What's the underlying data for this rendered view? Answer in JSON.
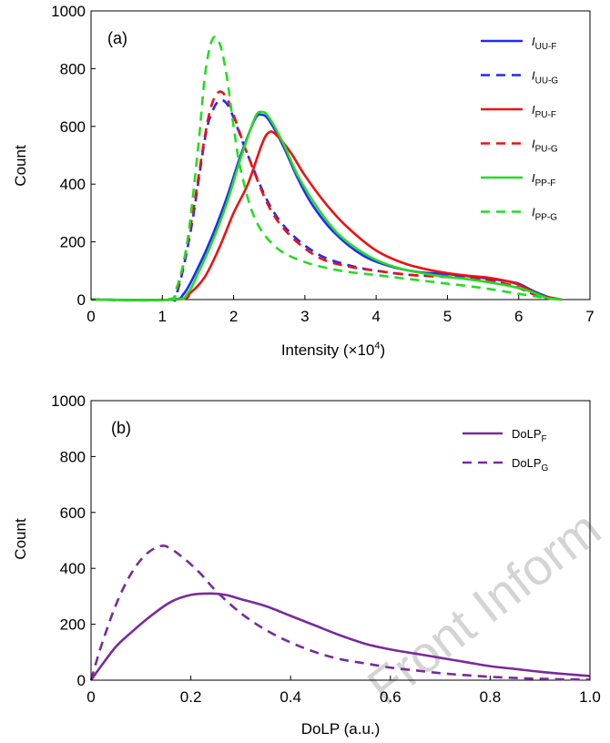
{
  "watermark": "Front Inform",
  "chart_data": [
    {
      "type": "line",
      "panel_label": "(a)",
      "xlabel": "Intensity (×10",
      "xlabel_sup": "4",
      "xlabel_suffix": ")",
      "ylabel": "Count",
      "xlim": [
        0,
        7
      ],
      "ylim": [
        0,
        1000
      ],
      "xticks": [
        0,
        1,
        2,
        3,
        4,
        5,
        6,
        7
      ],
      "yticks": [
        0,
        200,
        400,
        600,
        800,
        1000
      ],
      "grid": false,
      "legend_position": "top-right",
      "series": [
        {
          "legend_main": "I",
          "legend_sub": "UU-F",
          "color": "#1f2bff",
          "dash": "solid",
          "x": [
            0,
            1.1,
            1.3,
            1.5,
            1.7,
            1.9,
            2.1,
            2.3,
            2.4,
            2.5,
            2.7,
            2.9,
            3.1,
            3.4,
            3.8,
            4.2,
            4.6,
            5.0,
            5.4,
            5.8,
            6.0,
            6.2,
            6.4,
            6.6
          ],
          "y": [
            0,
            0,
            20,
            110,
            220,
            350,
            500,
            625,
            640,
            620,
            530,
            420,
            330,
            235,
            155,
            115,
            95,
            88,
            78,
            65,
            55,
            30,
            10,
            0
          ]
        },
        {
          "legend_main": "I",
          "legend_sub": "UU-G",
          "color": "#1f2bff",
          "dash": "dashed",
          "x": [
            0,
            1.05,
            1.2,
            1.4,
            1.6,
            1.7,
            1.8,
            1.9,
            2.0,
            2.2,
            2.5,
            2.8,
            3.2,
            3.6,
            4.0,
            4.5,
            5.0,
            5.5,
            5.8,
            6.0,
            6.2,
            6.4,
            6.6
          ],
          "y": [
            0,
            0,
            20,
            240,
            560,
            650,
            690,
            680,
            630,
            500,
            330,
            230,
            155,
            120,
            100,
            85,
            80,
            70,
            55,
            40,
            20,
            5,
            0
          ]
        },
        {
          "legend_main": "I",
          "legend_sub": "PU-F",
          "color": "#ee1111",
          "dash": "solid",
          "x": [
            0,
            1.2,
            1.4,
            1.6,
            1.8,
            2.0,
            2.2,
            2.4,
            2.5,
            2.6,
            2.8,
            3.0,
            3.3,
            3.6,
            4.0,
            4.4,
            4.8,
            5.2,
            5.6,
            5.9,
            6.1,
            6.3,
            6.6
          ],
          "y": [
            0,
            0,
            25,
            80,
            180,
            300,
            400,
            540,
            580,
            570,
            510,
            430,
            330,
            250,
            170,
            125,
            100,
            85,
            75,
            60,
            40,
            15,
            0
          ]
        },
        {
          "legend_main": "I",
          "legend_sub": "PU-G",
          "color": "#ee1111",
          "dash": "dashed",
          "x": [
            0,
            1.0,
            1.2,
            1.4,
            1.6,
            1.7,
            1.8,
            1.9,
            2.0,
            2.2,
            2.5,
            2.8,
            3.2,
            3.6,
            4.0,
            4.5,
            5.0,
            5.5,
            5.9,
            6.1,
            6.3,
            6.6
          ],
          "y": [
            0,
            0,
            30,
            260,
            570,
            680,
            720,
            700,
            640,
            500,
            320,
            220,
            145,
            115,
            100,
            85,
            78,
            68,
            50,
            30,
            10,
            0
          ]
        },
        {
          "legend_main": "I",
          "legend_sub": "PP-F",
          "color": "#22dd22",
          "dash": "solid",
          "x": [
            0,
            1.15,
            1.35,
            1.5,
            1.7,
            1.9,
            2.1,
            2.3,
            2.4,
            2.5,
            2.7,
            2.9,
            3.2,
            3.5,
            3.9,
            4.3,
            4.8,
            5.3,
            5.7,
            6.0,
            6.2,
            6.4,
            6.6
          ],
          "y": [
            0,
            0,
            20,
            90,
            200,
            330,
            490,
            630,
            650,
            630,
            540,
            430,
            310,
            220,
            150,
            110,
            85,
            70,
            55,
            40,
            25,
            5,
            0
          ]
        },
        {
          "legend_main": "I",
          "legend_sub": "PP-G",
          "color": "#22dd22",
          "dash": "dashed",
          "x": [
            0,
            1.05,
            1.2,
            1.35,
            1.5,
            1.6,
            1.7,
            1.8,
            1.9,
            2.0,
            2.1,
            2.3,
            2.6,
            3.0,
            3.5,
            4.0,
            4.5,
            5.0,
            5.5,
            6.0,
            6.4,
            6.6
          ],
          "y": [
            0,
            0,
            40,
            200,
            520,
            780,
            900,
            890,
            780,
            600,
            450,
            280,
            180,
            130,
            100,
            85,
            70,
            55,
            40,
            20,
            5,
            0
          ]
        }
      ]
    },
    {
      "type": "line",
      "panel_label": "(b)",
      "xlabel": "DoLP (a.u.)",
      "ylabel": "Count",
      "xlim": [
        0,
        1.0
      ],
      "ylim": [
        0,
        1000
      ],
      "xticks": [
        "0",
        "0.2",
        "0.4",
        "0.6",
        "0.8",
        "1.0"
      ],
      "xtick_values": [
        0,
        0.2,
        0.4,
        0.6,
        0.8,
        1.0
      ],
      "yticks": [
        0,
        200,
        400,
        600,
        800,
        1000
      ],
      "grid": false,
      "legend_position": "top-right",
      "series": [
        {
          "legend_main": "DoLP",
          "legend_sub": "F",
          "color": "#7a2a9c",
          "dash": "solid",
          "x": [
            0,
            0.02,
            0.05,
            0.08,
            0.12,
            0.16,
            0.2,
            0.24,
            0.27,
            0.3,
            0.35,
            0.4,
            0.45,
            0.5,
            0.55,
            0.6,
            0.65,
            0.7,
            0.75,
            0.8,
            0.85,
            0.9,
            0.95,
            1.0
          ],
          "y": [
            0,
            50,
            120,
            170,
            230,
            280,
            305,
            310,
            305,
            290,
            265,
            230,
            195,
            160,
            130,
            110,
            95,
            80,
            65,
            50,
            40,
            30,
            22,
            15
          ]
        },
        {
          "legend_main": "DoLP",
          "legend_sub": "G",
          "color": "#7a2a9c",
          "dash": "dashed",
          "x": [
            0,
            0.02,
            0.05,
            0.08,
            0.11,
            0.14,
            0.16,
            0.19,
            0.22,
            0.25,
            0.3,
            0.35,
            0.4,
            0.45,
            0.5,
            0.55,
            0.6,
            0.65,
            0.7,
            0.75,
            0.8,
            0.85,
            0.9,
            0.95,
            1.0
          ],
          "y": [
            0,
            120,
            270,
            380,
            450,
            480,
            470,
            430,
            380,
            320,
            240,
            180,
            135,
            100,
            75,
            60,
            45,
            35,
            25,
            18,
            12,
            8,
            5,
            3,
            2
          ]
        }
      ]
    }
  ]
}
